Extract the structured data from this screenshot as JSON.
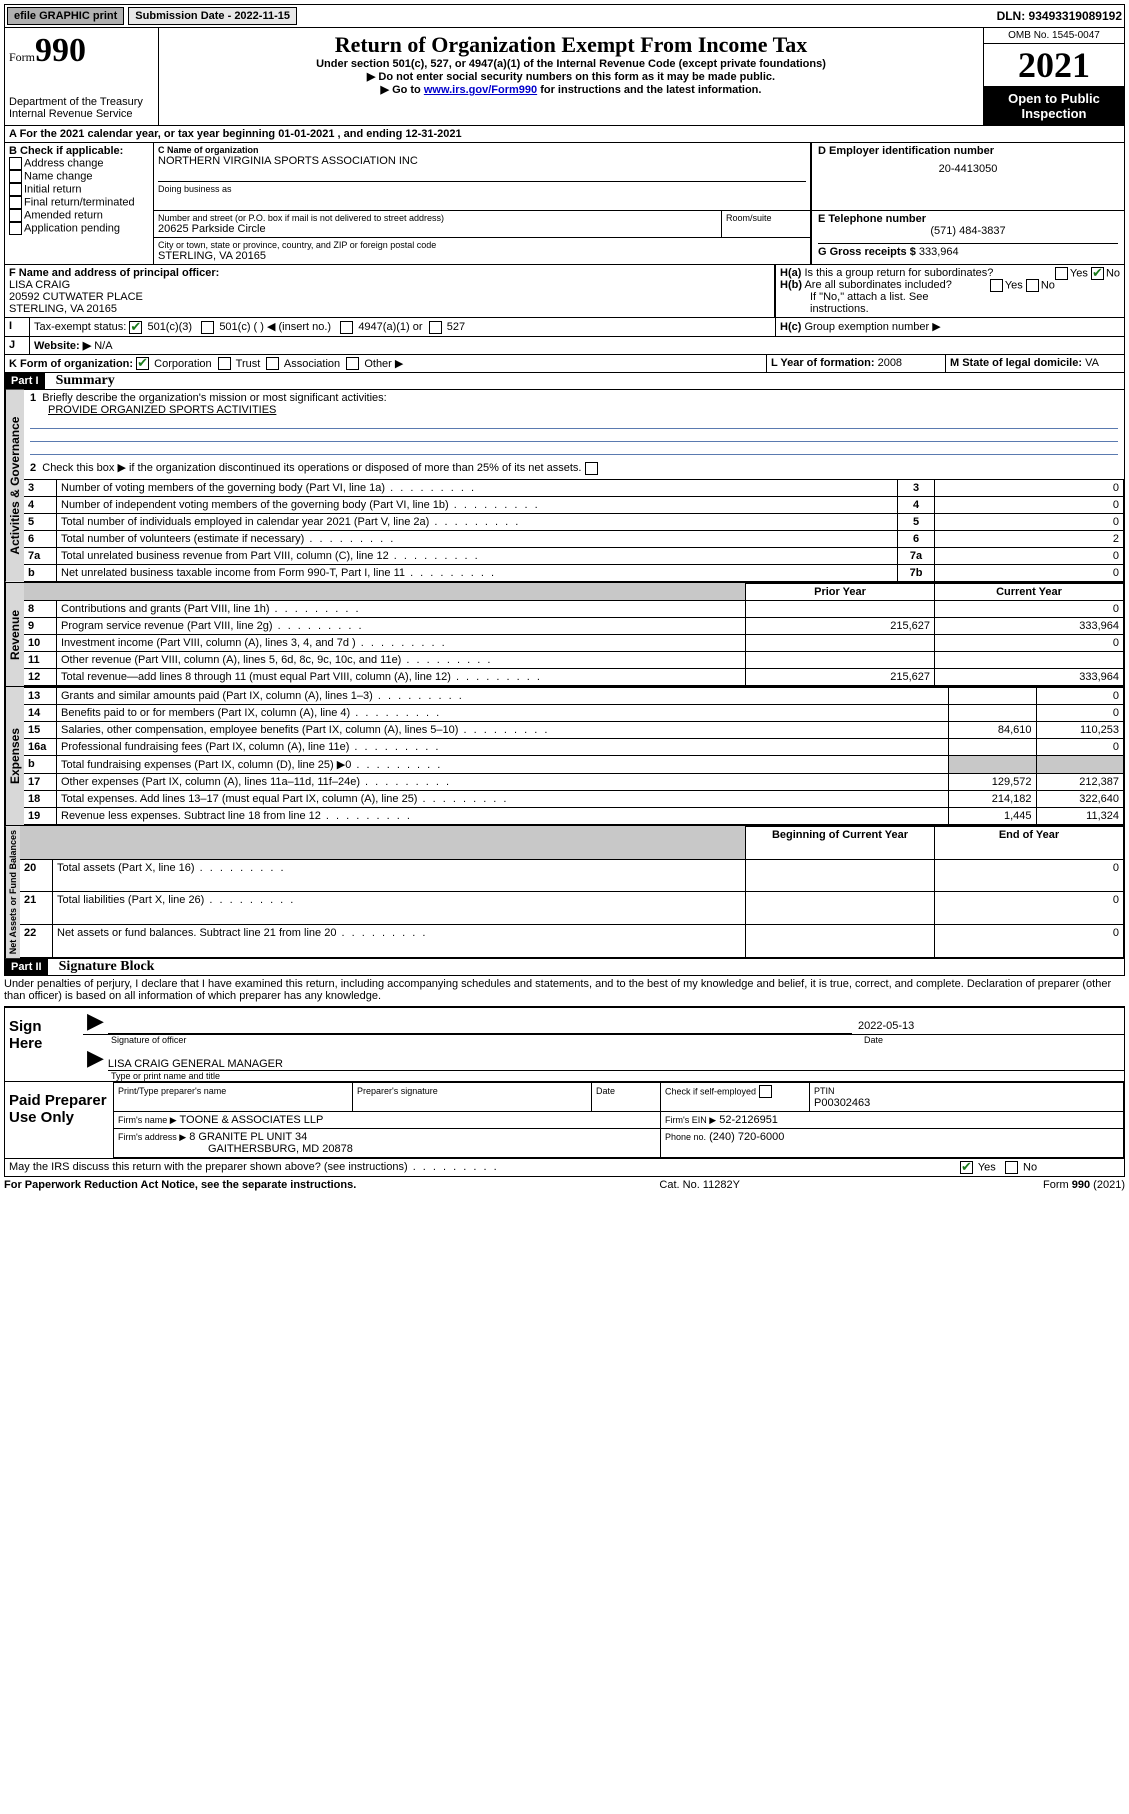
{
  "meta": {
    "efile": "efile GRAPHIC print",
    "submission_label": "Submission Date - 2022-11-15",
    "dln": "DLN: 93493319089192",
    "omb": "OMB No. 1545-0047",
    "year": "2021",
    "open": "Open to Public Inspection"
  },
  "header": {
    "form_word": "Form",
    "form_no": "990",
    "dept": "Department of the Treasury",
    "irs": "Internal Revenue Service",
    "title": "Return of Organization Exempt From Income Tax",
    "subtitle": "Under section 501(c), 527, or 4947(a)(1) of the Internal Revenue Code (except private foundations)",
    "note1": "▶ Do not enter social security numbers on this form as it may be made public.",
    "note2_pre": "▶ Go to ",
    "note2_link": "www.irs.gov/Form990",
    "note2_post": " for instructions and the latest information."
  },
  "A": {
    "line": "A For the 2021 calendar year, or tax year beginning 01-01-2021   , and ending 12-31-2021"
  },
  "B": {
    "title": "B Check if applicable:",
    "addr": "Address change",
    "name": "Name change",
    "init": "Initial return",
    "final": "Final return/terminated",
    "amend": "Amended return",
    "app": "Application pending"
  },
  "C": {
    "label": "C Name of organization",
    "org": "NORTHERN VIRGINIA SPORTS ASSOCIATION INC",
    "dba": "Doing business as",
    "street_label": "Number and street (or P.O. box if mail is not delivered to street address)",
    "room": "Room/suite",
    "street": "20625 Parkside Circle",
    "city_label": "City or town, state or province, country, and ZIP or foreign postal code",
    "city": "STERLING, VA  20165"
  },
  "D": {
    "label": "D Employer identification number",
    "val": "20-4413050"
  },
  "E": {
    "label": "E Telephone number",
    "val": "(571) 484-3837"
  },
  "G": {
    "label": "G Gross receipts $",
    "val": "333,964"
  },
  "F": {
    "label": "F Name and address of principal officer:",
    "name": "LISA CRAIG",
    "addr1": "20592 CUTWATER PLACE",
    "addr2": "STERLING, VA  20165"
  },
  "H": {
    "a": "Is this a group return for subordinates?",
    "b": "Are all subordinates included?",
    "no_note": "If \"No,\" attach a list. See instructions.",
    "c": "Group exemption number ▶",
    "yes": "Yes",
    "no": "No"
  },
  "I": {
    "label": "Tax-exempt status:",
    "c3": "501(c)(3)",
    "c": "501(c) (   ) ◀ (insert no.)",
    "a1": "4947(a)(1) or",
    "s527": "527"
  },
  "J": {
    "label": "Website: ▶",
    "val": "N/A"
  },
  "K": {
    "label": "K Form of organization:",
    "corp": "Corporation",
    "trust": "Trust",
    "assoc": "Association",
    "other": "Other ▶"
  },
  "L": {
    "label": "L Year of formation:",
    "val": "2008"
  },
  "M": {
    "label": "M State of legal domicile:",
    "val": "VA"
  },
  "part1": {
    "title": "Part I",
    "name": "Summary",
    "l1": "Briefly describe the organization's mission or most significant activities:",
    "mission": "PROVIDE ORGANIZED SPORTS ACTIVITIES",
    "l2": "Check this box ▶      if the organization discontinued its operations or disposed of more than 25% of its net assets.",
    "tabs": {
      "gov": "Activities & Governance",
      "rev": "Revenue",
      "exp": "Expenses",
      "net": "Net Assets or Fund Balances"
    },
    "rows_gov": [
      {
        "n": "3",
        "text": "Number of voting members of the governing body (Part VI, line 1a)",
        "box": "3",
        "val": "0"
      },
      {
        "n": "4",
        "text": "Number of independent voting members of the governing body (Part VI, line 1b)",
        "box": "4",
        "val": "0"
      },
      {
        "n": "5",
        "text": "Total number of individuals employed in calendar year 2021 (Part V, line 2a)",
        "box": "5",
        "val": "0"
      },
      {
        "n": "6",
        "text": "Total number of volunteers (estimate if necessary)",
        "box": "6",
        "val": "2"
      },
      {
        "n": "7a",
        "text": "Total unrelated business revenue from Part VIII, column (C), line 12",
        "box": "7a",
        "val": "0"
      },
      {
        "n": "b",
        "text": "Net unrelated business taxable income from Form 990-T, Part I, line 11",
        "box": "7b",
        "val": "0"
      }
    ],
    "col_prior": "Prior Year",
    "col_current": "Current Year",
    "col_begin": "Beginning of Current Year",
    "col_end": "End of Year",
    "rows_rev": [
      {
        "n": "8",
        "text": "Contributions and grants (Part VIII, line 1h)",
        "py": "",
        "cy": "0"
      },
      {
        "n": "9",
        "text": "Program service revenue (Part VIII, line 2g)",
        "py": "215,627",
        "cy": "333,964"
      },
      {
        "n": "10",
        "text": "Investment income (Part VIII, column (A), lines 3, 4, and 7d )",
        "py": "",
        "cy": "0"
      },
      {
        "n": "11",
        "text": "Other revenue (Part VIII, column (A), lines 5, 6d, 8c, 9c, 10c, and 11e)",
        "py": "",
        "cy": ""
      },
      {
        "n": "12",
        "text": "Total revenue—add lines 8 through 11 (must equal Part VIII, column (A), line 12)",
        "py": "215,627",
        "cy": "333,964"
      }
    ],
    "rows_exp": [
      {
        "n": "13",
        "text": "Grants and similar amounts paid (Part IX, column (A), lines 1–3)",
        "py": "",
        "cy": "0"
      },
      {
        "n": "14",
        "text": "Benefits paid to or for members (Part IX, column (A), line 4)",
        "py": "",
        "cy": "0"
      },
      {
        "n": "15",
        "text": "Salaries, other compensation, employee benefits (Part IX, column (A), lines 5–10)",
        "py": "84,610",
        "cy": "110,253"
      },
      {
        "n": "16a",
        "text": "Professional fundraising fees (Part IX, column (A), line 11e)",
        "py": "",
        "cy": "0"
      },
      {
        "n": "b",
        "text": "Total fundraising expenses (Part IX, column (D), line 25) ▶0",
        "py": "GREY",
        "cy": "GREY"
      },
      {
        "n": "17",
        "text": "Other expenses (Part IX, column (A), lines 11a–11d, 11f–24e)",
        "py": "129,572",
        "cy": "212,387"
      },
      {
        "n": "18",
        "text": "Total expenses. Add lines 13–17 (must equal Part IX, column (A), line 25)",
        "py": "214,182",
        "cy": "322,640"
      },
      {
        "n": "19",
        "text": "Revenue less expenses. Subtract line 18 from line 12",
        "py": "1,445",
        "cy": "11,324"
      }
    ],
    "rows_net": [
      {
        "n": "20",
        "text": "Total assets (Part X, line 16)",
        "py": "",
        "cy": "0"
      },
      {
        "n": "21",
        "text": "Total liabilities (Part X, line 26)",
        "py": "",
        "cy": "0"
      },
      {
        "n": "22",
        "text": "Net assets or fund balances. Subtract line 21 from line 20",
        "py": "",
        "cy": "0"
      }
    ]
  },
  "part2": {
    "title": "Part II",
    "name": "Signature Block",
    "perjury": "Under penalties of perjury, I declare that I have examined this return, including accompanying schedules and statements, and to the best of my knowledge and belief, it is true, correct, and complete. Declaration of preparer (other than officer) is based on all information of which preparer has any knowledge.",
    "sign_here": "Sign Here",
    "sig_officer": "Signature of officer",
    "date": "Date",
    "sig_date": "2022-05-13",
    "officer_typed": "LISA CRAIG  GENERAL MANAGER",
    "type_name": "Type or print name and title",
    "paid": "Paid Preparer Use Only",
    "prep_name": "Print/Type preparer's name",
    "prep_sig": "Preparer's signature",
    "check_self": "Check       if self-employed",
    "ptin_label": "PTIN",
    "ptin": "P00302463",
    "firm_name_label": "Firm's name    ▶",
    "firm_name": "TOONE & ASSOCIATES LLP",
    "firm_ein_label": "Firm's EIN ▶",
    "firm_ein": "52-2126951",
    "firm_addr_label": "Firm's address ▶",
    "firm_addr1": "8 GRANITE PL UNIT 34",
    "firm_addr2": "GAITHERSBURG, MD  20878",
    "phone_label": "Phone no.",
    "phone": "(240) 720-6000",
    "discuss": "May the IRS discuss this return with the preparer shown above? (see instructions)",
    "paperwork": "For Paperwork Reduction Act Notice, see the separate instructions.",
    "catno": "Cat. No. 11282Y",
    "formno": "Form 990 (2021)"
  }
}
